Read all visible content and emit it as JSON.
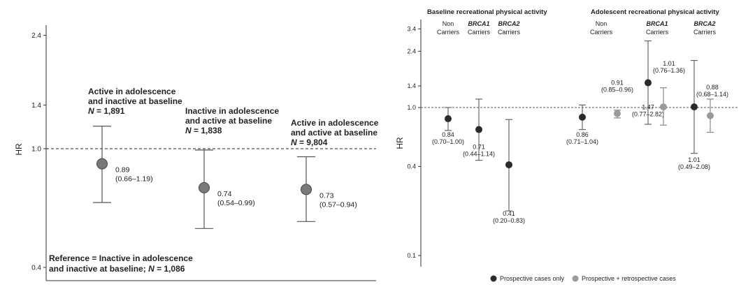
{
  "chart_data": [
    {
      "type": "scatter",
      "panel": "left",
      "ylabel": "HR",
      "yscale": "log",
      "ylim": [
        0.4,
        2.4
      ],
      "yticks": [
        "0.4",
        "1.0",
        "1.4",
        "2.4"
      ],
      "reference_line": 1.0,
      "groups": [
        {
          "title1": "Active in adolescence",
          "title2": "and inactive at baseline",
          "n_label": "N",
          "n_value": "= 1,891",
          "hr": 0.89,
          "lo": 0.66,
          "hi": 1.19,
          "hr_text": "0.89",
          "ci_text": "(0.66–1.19)"
        },
        {
          "title1": "Inactive in adolescence",
          "title2": "and active at baseline",
          "n_label": "N",
          "n_value": "= 1,838",
          "hr": 0.74,
          "lo": 0.54,
          "hi": 0.99,
          "hr_text": "0.74",
          "ci_text": "(0.54–0.99)"
        },
        {
          "title1": "Active in adolescence",
          "title2": "and active at baseline",
          "n_label": "N",
          "n_value": "= 9,804",
          "hr": 0.73,
          "lo": 0.57,
          "hi": 0.94,
          "hr_text": "0.73",
          "ci_text": "(0.57–0.94)"
        }
      ],
      "reference_note1": "Reference = Inactive in adolescence",
      "reference_note2": "and inactive at baseline;",
      "reference_n_label": "N",
      "reference_n_value": "= 1,086",
      "colors": {
        "point": "#7a7a7a",
        "bar": "#555555"
      }
    },
    {
      "type": "scatter",
      "panel": "right",
      "ylabel": "HR",
      "yscale": "log",
      "ylim": [
        0.1,
        3.4
      ],
      "yticks": [
        "0.1",
        "0.4",
        "1.0",
        "1.4",
        "2.4",
        "3.4"
      ],
      "reference_line": 1.0,
      "section_titles": [
        "Baseline recreational physical activity",
        "Adolescent recreational physical activity"
      ],
      "columns": [
        {
          "line1": "Non",
          "line2": "Carriers",
          "italic": false
        },
        {
          "line1": "BRCA1",
          "line2": "Carriers",
          "italic": true
        },
        {
          "line1": "BRCA2",
          "line2": "Carriers",
          "italic": true
        },
        {
          "line1": "Non",
          "line2": "Carriers",
          "italic": false
        },
        {
          "line1": "BRCA1",
          "line2": "Carriers",
          "italic": true
        },
        {
          "line1": "BRCA2",
          "line2": "Carriers",
          "italic": true
        }
      ],
      "series": [
        {
          "name": "Prospective cases only",
          "color": "#2b2b2b",
          "points": [
            {
              "hr": 0.84,
              "lo": 0.7,
              "hi": 1.0,
              "hr_text": "0.84",
              "ci_text": "(0.70–1.00)"
            },
            {
              "hr": 0.71,
              "lo": 0.44,
              "hi": 1.14,
              "hr_text": "0.71",
              "ci_text": "(0.44–1.14)"
            },
            {
              "hr": 0.41,
              "lo": 0.2,
              "hi": 0.83,
              "hr_text": "0.41",
              "ci_text": "(0.20–0.83)"
            },
            {
              "hr": 0.86,
              "lo": 0.71,
              "hi": 1.04,
              "hr_text": "0.86",
              "ci_text": "(0.71–1.04)"
            },
            {
              "hr": 1.47,
              "lo": 0.77,
              "hi": 2.82,
              "hr_text": "1.47",
              "ci_text": "(0.77–2.82)"
            },
            {
              "hr": 1.01,
              "lo": 0.49,
              "hi": 2.08,
              "hr_text": "1.01",
              "ci_text": "(0.49–2.08)"
            }
          ]
        },
        {
          "name": "Prospective + retrospective cases",
          "color": "#9a9a9a",
          "points": [
            {
              "col": 3,
              "hr": 0.91,
              "lo": 0.85,
              "hi": 0.96,
              "hr_text": "0.91",
              "ci_text": "(0.85–0.96)"
            },
            {
              "col": 4,
              "hr": 1.01,
              "lo": 0.76,
              "hi": 1.36,
              "hr_text": "1.01",
              "ci_text": "(0.76–1.36)"
            },
            {
              "col": 5,
              "hr": 0.88,
              "lo": 0.68,
              "hi": 1.14,
              "hr_text": "0.88",
              "ci_text": "(0.68–1.14)"
            }
          ]
        }
      ],
      "legend_position": "bottom"
    }
  ]
}
